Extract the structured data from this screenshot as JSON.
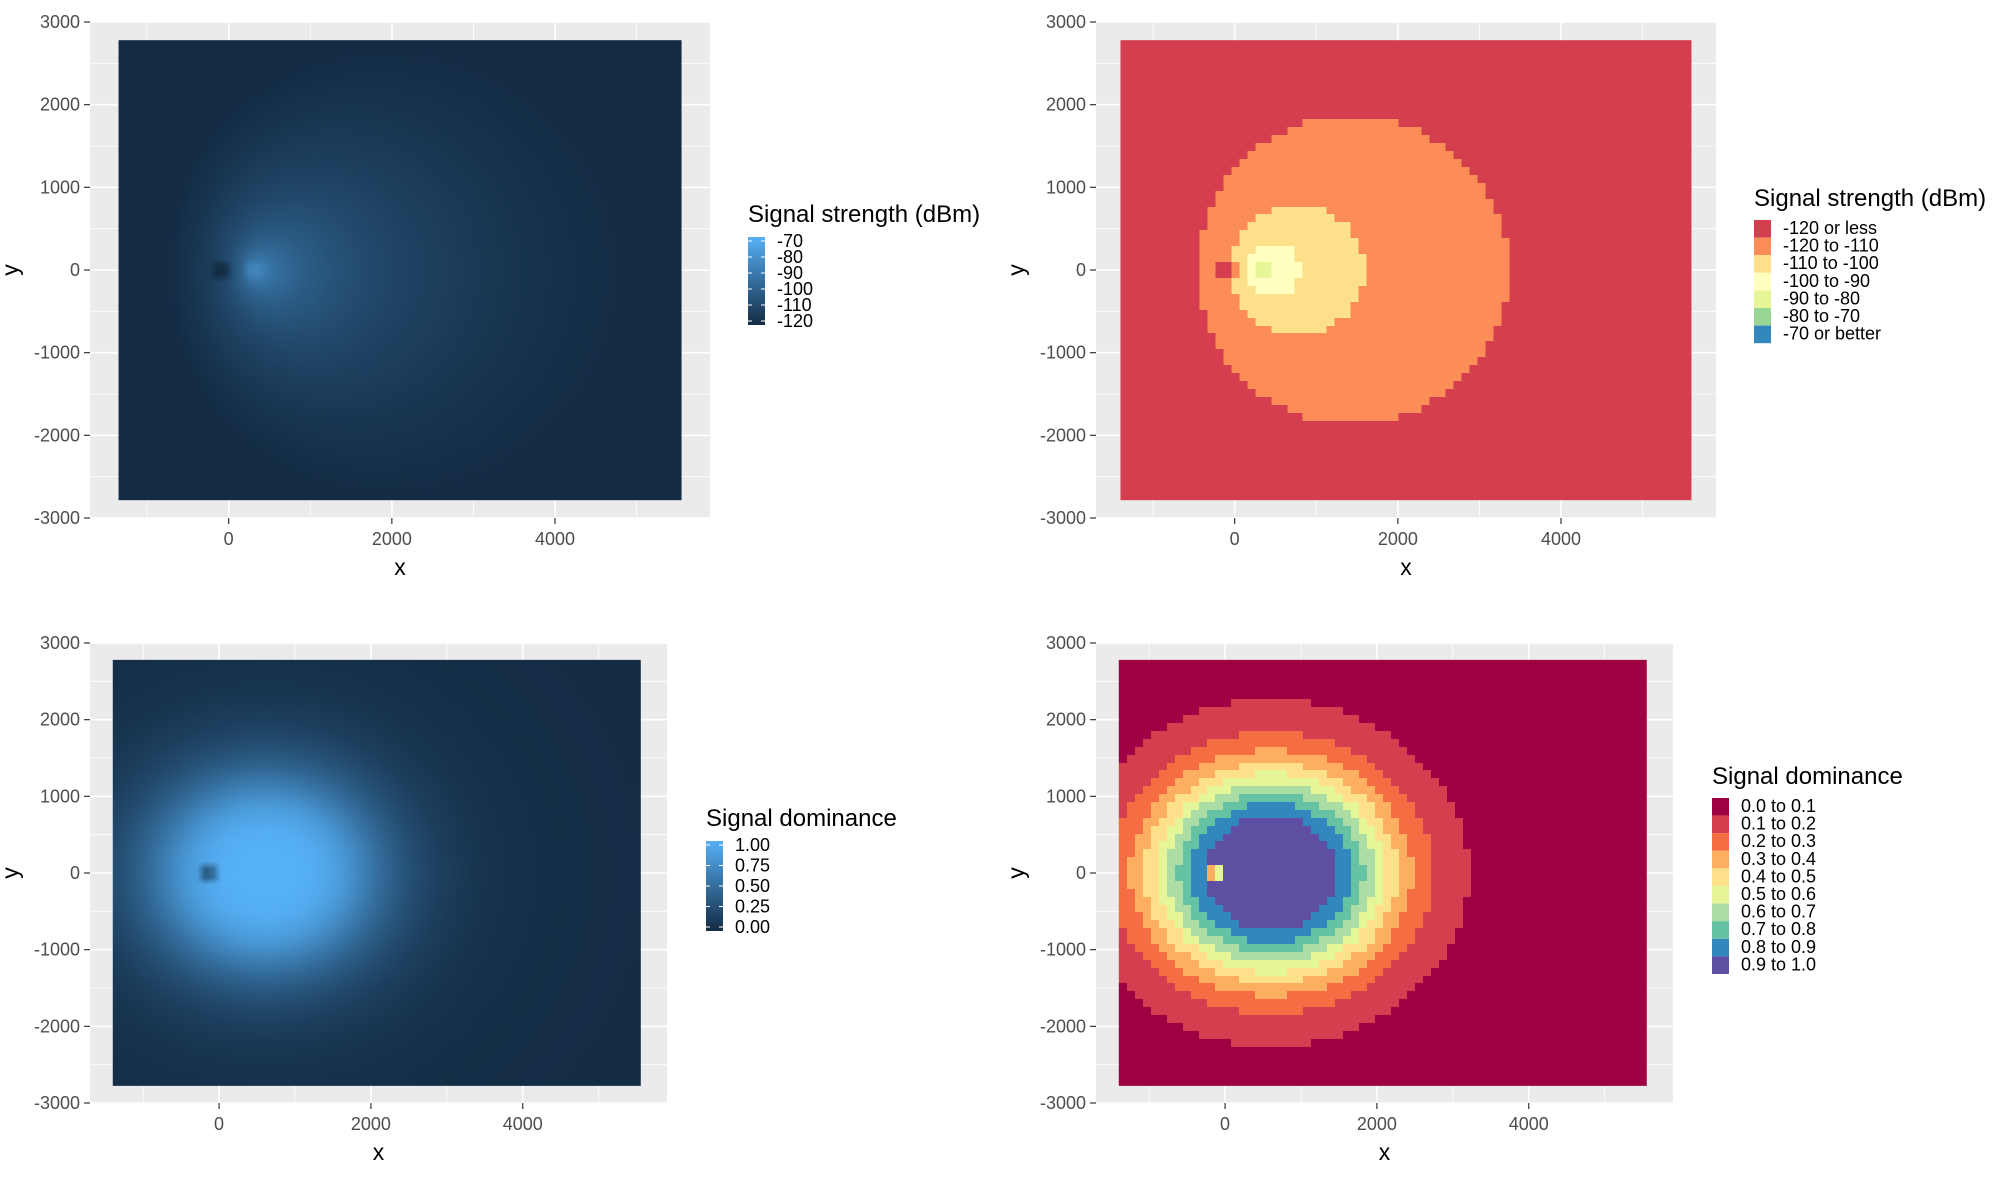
{
  "chart_data": [
    {
      "id": "p1",
      "type": "heatmap",
      "title": "",
      "xlabel": "x",
      "ylabel": "y",
      "xlim": [
        -1700,
        5900
      ],
      "ylim": [
        -3000,
        3000
      ],
      "x_extent": [
        -1350,
        5550
      ],
      "y_extent": [
        -2780,
        2780
      ],
      "x_ticks": [
        "0",
        "2000",
        "4000"
      ],
      "y_ticks": [
        "3000",
        "2000",
        "1000",
        "0",
        "-1000",
        "-2000",
        "-3000"
      ],
      "field": "signal_strength",
      "scale": "continuous",
      "legend": {
        "title": "Signal strength (dBm)",
        "labels": [
          "-70",
          "-80",
          "-90",
          "-100",
          "-110",
          "-120"
        ],
        "low_color": "#132B43",
        "high_color": "#56B1F7"
      }
    },
    {
      "id": "p2",
      "type": "heatmap",
      "title": "",
      "xlabel": "x",
      "ylabel": "y",
      "xlim": [
        -1700,
        5900
      ],
      "ylim": [
        -3000,
        3000
      ],
      "x_extent": [
        -1400,
        5600
      ],
      "y_extent": [
        -2780,
        2780
      ],
      "x_ticks": [
        "0",
        "2000",
        "4000"
      ],
      "y_ticks": [
        "3000",
        "2000",
        "1000",
        "0",
        "-1000",
        "-2000",
        "-3000"
      ],
      "field": "signal_strength",
      "scale": "binned",
      "legend": {
        "title": "Signal strength (dBm)",
        "labels": [
          "-120 or less",
          "-120 to -110",
          "-110 to -100",
          "-100 to -90",
          "-90 to -80",
          "-80 to -70",
          "-70 or better"
        ],
        "colors": [
          "#D53E4F",
          "#FC8D59",
          "#FEE08B",
          "#FFFFBF",
          "#E6F598",
          "#99D594",
          "#3288BD"
        ]
      }
    },
    {
      "id": "p3",
      "type": "heatmap",
      "title": "",
      "xlabel": "x",
      "ylabel": "y",
      "xlim": [
        -1700,
        5900
      ],
      "ylim": [
        -3000,
        3000
      ],
      "x_extent": [
        -1400,
        5550
      ],
      "y_extent": [
        -2780,
        2780
      ],
      "x_ticks": [
        "0",
        "2000",
        "4000"
      ],
      "y_ticks": [
        "3000",
        "2000",
        "1000",
        "0",
        "-1000",
        "-2000",
        "-3000"
      ],
      "field": "signal_dominance",
      "scale": "continuous",
      "legend": {
        "title": "Signal dominance",
        "labels": [
          "1.00",
          "0.75",
          "0.50",
          "0.25",
          "0.00"
        ],
        "low_color": "#132B43",
        "high_color": "#56B1F7"
      }
    },
    {
      "id": "p4",
      "type": "heatmap",
      "title": "",
      "xlabel": "x",
      "ylabel": "y",
      "xlim": [
        -1700,
        5900
      ],
      "ylim": [
        -3000,
        3000
      ],
      "x_extent": [
        -1400,
        5550
      ],
      "y_extent": [
        -2780,
        2780
      ],
      "x_ticks": [
        "0",
        "2000",
        "4000"
      ],
      "y_ticks": [
        "3000",
        "2000",
        "1000",
        "0",
        "-1000",
        "-2000",
        "-3000"
      ],
      "field": "signal_dominance",
      "scale": "binned",
      "legend": {
        "title": "Signal dominance",
        "labels": [
          "0.0 to 0.1",
          "0.1 to 0.2",
          "0.2 to 0.3",
          "0.3 to 0.4",
          "0.4 to 0.5",
          "0.5 to 0.6",
          "0.6 to 0.7",
          "0.7 to 0.8",
          "0.8 to 0.9",
          "0.9 to 1.0"
        ],
        "colors": [
          "#9E0142",
          "#D53E4F",
          "#F46D43",
          "#FDAE61",
          "#FEE08B",
          "#E6F598",
          "#ABDDA4",
          "#66C2A5",
          "#3288BD",
          "#5E4FA2"
        ]
      }
    }
  ]
}
